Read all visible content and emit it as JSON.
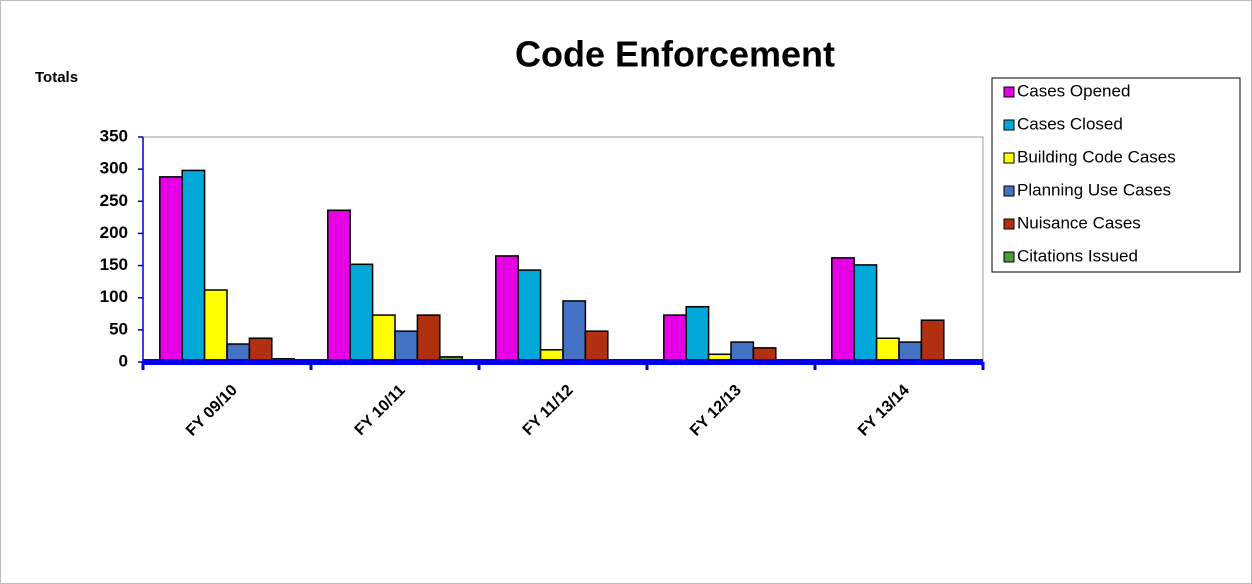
{
  "chart_data": {
    "type": "bar",
    "title": "Code Enforcement",
    "y_label": "Totals",
    "categories": [
      "FY 09/10",
      "FY 10/11",
      "FY 11/12",
      "FY 12/13",
      "FY 13/14"
    ],
    "series": [
      {
        "name": "Cases Opened",
        "color": "#e600e6",
        "values": [
          288,
          236,
          165,
          73,
          162
        ]
      },
      {
        "name": "Cases Closed",
        "color": "#00a8d8",
        "values": [
          298,
          152,
          143,
          86,
          151
        ]
      },
      {
        "name": "Building Code Cases",
        "color": "#ffff00",
        "values": [
          112,
          73,
          19,
          12,
          37
        ]
      },
      {
        "name": "Planning Use Cases",
        "color": "#4472c4",
        "values": [
          28,
          48,
          95,
          31,
          31
        ]
      },
      {
        "name": "Nuisance Cases",
        "color": "#b03010",
        "values": [
          37,
          73,
          48,
          22,
          65
        ]
      },
      {
        "name": "Citations Issued",
        "color": "#4e9a3e",
        "values": [
          5,
          8,
          0,
          0,
          0
        ]
      }
    ],
    "ylim": [
      0,
      350
    ],
    "yticks": [
      0,
      50,
      100,
      150,
      200,
      250,
      300,
      350
    ],
    "legend": "right"
  }
}
